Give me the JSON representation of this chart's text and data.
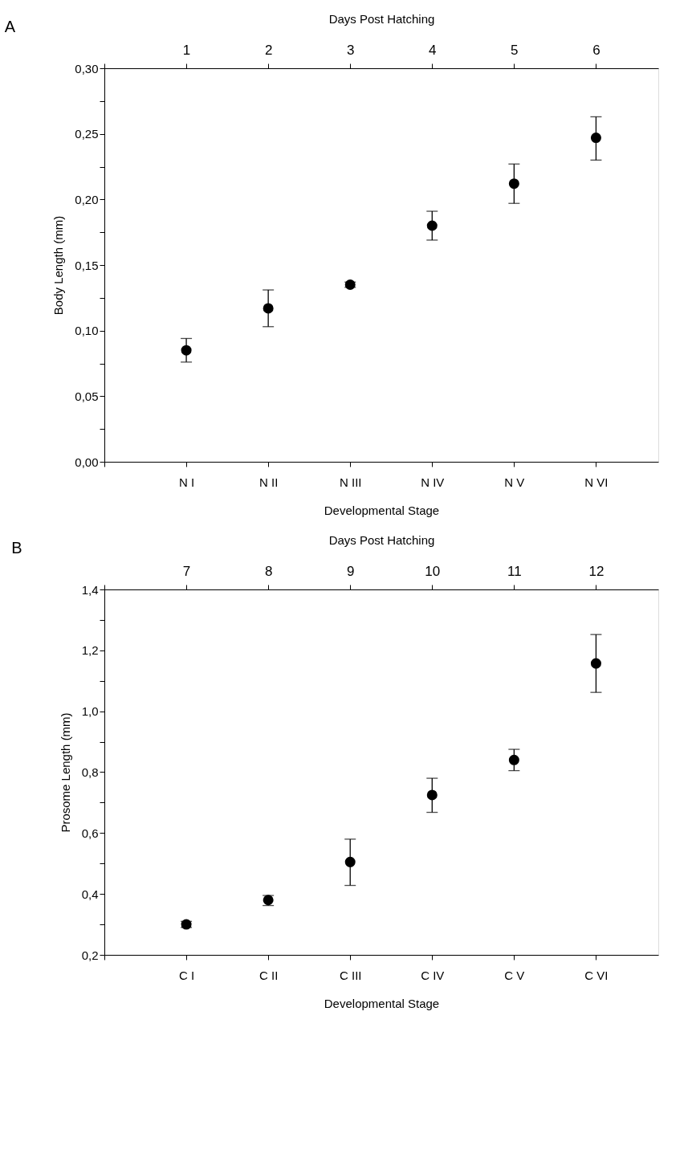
{
  "chart_data": [
    {
      "type": "scatter",
      "title": "A",
      "xlabel": "Developmental Stage",
      "ylabel": "Body Length (mm)",
      "x2label": "Days Post Hatching",
      "categories": [
        "N I",
        "N II",
        "N III",
        "N IV",
        "N V",
        "N VI"
      ],
      "series": [
        {
          "color": "#000000",
          "values": [
            0.085,
            0.117,
            0.135,
            0.18,
            0.212,
            0.247
          ],
          "errors": [
            [
              0.076,
              0.094
            ],
            [
              0.103,
              0.131
            ],
            [
              0.133,
              0.137
            ],
            [
              0.169,
              0.191
            ],
            [
              0.197,
              0.227
            ],
            [
              0.23,
              0.263
            ]
          ]
        }
      ],
      "ylim": [
        0,
        0.3
      ],
      "yticks": [
        {
          "value": 0,
          "label": "0,00"
        },
        {
          "value": 0.025,
          "label": null
        },
        {
          "value": 0.05,
          "label": "0,05"
        },
        {
          "value": 0.075,
          "label": null
        },
        {
          "value": 0.1,
          "label": "0,10"
        },
        {
          "value": 0.125,
          "label": null
        },
        {
          "value": 0.15,
          "label": "0,15"
        },
        {
          "value": 0.175,
          "label": null
        },
        {
          "value": 0.2,
          "label": "0,20"
        },
        {
          "value": 0.225,
          "label": null
        },
        {
          "value": 0.25,
          "label": "0,25"
        },
        {
          "value": 0.275,
          "label": null
        },
        {
          "value": 0.3,
          "label": "0,30"
        }
      ],
      "x2lim": [
        0,
        6.76
      ],
      "x2ticks": [
        {
          "value": 0,
          "label": null
        },
        1,
        2,
        3,
        4,
        5,
        6
      ],
      "marker": "circle",
      "grid": false
    },
    {
      "type": "scatter",
      "title": "B",
      "xlabel": "Developmental Stage",
      "ylabel": "Prosome Length (mm)",
      "x2label": "Days Post Hatching",
      "categories": [
        "C I",
        "C II",
        "C III",
        "C IV",
        "C V",
        "C VI"
      ],
      "series": [
        {
          "color": "#000000",
          "values": [
            0.3,
            0.38,
            0.505,
            0.725,
            0.84,
            1.157
          ],
          "errors": [
            [
              0.29,
              0.31
            ],
            [
              0.362,
              0.395
            ],
            [
              0.428,
              0.58
            ],
            [
              0.668,
              0.78
            ],
            [
              0.805,
              0.875
            ],
            [
              1.062,
              1.252
            ]
          ]
        }
      ],
      "ylim": [
        0.2,
        1.4
      ],
      "yticks": [
        {
          "value": 0.2,
          "label": "0,2"
        },
        {
          "value": 0.3,
          "label": null
        },
        {
          "value": 0.4,
          "label": "0,4"
        },
        {
          "value": 0.5,
          "label": null
        },
        {
          "value": 0.6,
          "label": "0,6"
        },
        {
          "value": 0.7,
          "label": null
        },
        {
          "value": 0.8,
          "label": "0,8"
        },
        {
          "value": 0.9,
          "label": null
        },
        {
          "value": 1.0,
          "label": "1,0"
        },
        {
          "value": 1.1,
          "label": null
        },
        {
          "value": 1.2,
          "label": "1,2"
        },
        {
          "value": 1.3,
          "label": null
        },
        {
          "value": 1.4,
          "label": "1,4"
        }
      ],
      "x2lim": [
        6,
        12.76
      ],
      "x2ticks": [
        {
          "value": 6,
          "label": null
        },
        7,
        8,
        9,
        10,
        11,
        12
      ],
      "marker": "circle",
      "grid": false
    }
  ]
}
